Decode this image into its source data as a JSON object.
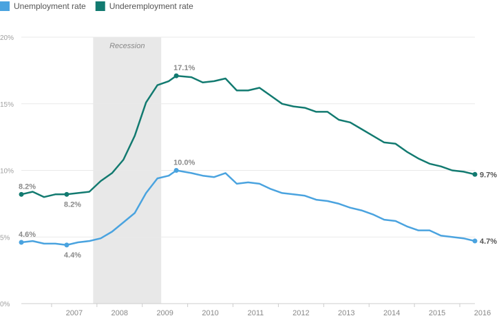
{
  "chart_data": {
    "type": "line",
    "title": "",
    "xlabel": "",
    "ylabel": "",
    "ylim": [
      0,
      20
    ],
    "xlim": [
      "2006-05",
      "2016-05"
    ],
    "y_ticks": [
      "0%",
      "5%",
      "10%",
      "15%",
      "20%"
    ],
    "x_ticks": [
      "2007",
      "2008",
      "2009",
      "2010",
      "2011",
      "2012",
      "2013",
      "2014",
      "2015",
      "2016"
    ],
    "grid": true,
    "legend_position": "top-left",
    "shaded_region": {
      "label": "Recession",
      "start": "2007-12",
      "end": "2009-06"
    },
    "series": [
      {
        "name": "Unemployment rate",
        "color": "#4aa3df",
        "points": [
          [
            "2006-05",
            4.6
          ],
          [
            "2006-08",
            4.7
          ],
          [
            "2006-11",
            4.5
          ],
          [
            "2007-02",
            4.5
          ],
          [
            "2007-05",
            4.4
          ],
          [
            "2007-08",
            4.6
          ],
          [
            "2007-11",
            4.7
          ],
          [
            "2008-02",
            4.9
          ],
          [
            "2008-05",
            5.4
          ],
          [
            "2008-08",
            6.1
          ],
          [
            "2008-11",
            6.8
          ],
          [
            "2009-02",
            8.3
          ],
          [
            "2009-05",
            9.4
          ],
          [
            "2009-08",
            9.6
          ],
          [
            "2009-10",
            10.0
          ],
          [
            "2010-02",
            9.8
          ],
          [
            "2010-05",
            9.6
          ],
          [
            "2010-08",
            9.5
          ],
          [
            "2010-11",
            9.8
          ],
          [
            "2011-02",
            9.0
          ],
          [
            "2011-05",
            9.1
          ],
          [
            "2011-08",
            9.0
          ],
          [
            "2011-11",
            8.6
          ],
          [
            "2012-02",
            8.3
          ],
          [
            "2012-05",
            8.2
          ],
          [
            "2012-08",
            8.1
          ],
          [
            "2012-11",
            7.8
          ],
          [
            "2013-02",
            7.7
          ],
          [
            "2013-05",
            7.5
          ],
          [
            "2013-08",
            7.2
          ],
          [
            "2013-11",
            7.0
          ],
          [
            "2014-02",
            6.7
          ],
          [
            "2014-05",
            6.3
          ],
          [
            "2014-08",
            6.2
          ],
          [
            "2014-11",
            5.8
          ],
          [
            "2015-02",
            5.5
          ],
          [
            "2015-05",
            5.5
          ],
          [
            "2015-08",
            5.1
          ],
          [
            "2015-11",
            5.0
          ],
          [
            "2016-02",
            4.9
          ],
          [
            "2016-05",
            4.7
          ]
        ],
        "annotations": [
          {
            "x": "2006-05",
            "y": 4.6,
            "label": "4.6%"
          },
          {
            "x": "2007-05",
            "y": 4.4,
            "label": "4.4%"
          },
          {
            "x": "2009-10",
            "y": 10.0,
            "label": "10.0%"
          },
          {
            "x": "2016-05",
            "y": 4.7,
            "label": "4.7%"
          }
        ]
      },
      {
        "name": "Underemployment rate",
        "color": "#127a70",
        "points": [
          [
            "2006-05",
            8.2
          ],
          [
            "2006-08",
            8.4
          ],
          [
            "2006-11",
            8.0
          ],
          [
            "2007-02",
            8.2
          ],
          [
            "2007-05",
            8.2
          ],
          [
            "2007-08",
            8.3
          ],
          [
            "2007-11",
            8.4
          ],
          [
            "2008-02",
            9.2
          ],
          [
            "2008-05",
            9.8
          ],
          [
            "2008-08",
            10.8
          ],
          [
            "2008-11",
            12.6
          ],
          [
            "2009-02",
            15.1
          ],
          [
            "2009-05",
            16.4
          ],
          [
            "2009-08",
            16.7
          ],
          [
            "2009-10",
            17.1
          ],
          [
            "2010-02",
            17.0
          ],
          [
            "2010-05",
            16.6
          ],
          [
            "2010-08",
            16.7
          ],
          [
            "2010-11",
            16.9
          ],
          [
            "2011-02",
            16.0
          ],
          [
            "2011-05",
            16.0
          ],
          [
            "2011-08",
            16.2
          ],
          [
            "2011-11",
            15.6
          ],
          [
            "2012-02",
            15.0
          ],
          [
            "2012-05",
            14.8
          ],
          [
            "2012-08",
            14.7
          ],
          [
            "2012-11",
            14.4
          ],
          [
            "2013-02",
            14.4
          ],
          [
            "2013-05",
            13.8
          ],
          [
            "2013-08",
            13.6
          ],
          [
            "2013-11",
            13.1
          ],
          [
            "2014-02",
            12.6
          ],
          [
            "2014-05",
            12.1
          ],
          [
            "2014-08",
            12.0
          ],
          [
            "2014-11",
            11.4
          ],
          [
            "2015-02",
            10.9
          ],
          [
            "2015-05",
            10.5
          ],
          [
            "2015-08",
            10.3
          ],
          [
            "2015-11",
            10.0
          ],
          [
            "2016-02",
            9.9
          ],
          [
            "2016-05",
            9.7
          ]
        ],
        "annotations": [
          {
            "x": "2006-05",
            "y": 8.2,
            "label": "8.2%"
          },
          {
            "x": "2007-05",
            "y": 8.2,
            "label": "8.2%"
          },
          {
            "x": "2009-10",
            "y": 17.1,
            "label": "17.1%"
          },
          {
            "x": "2016-05",
            "y": 9.7,
            "label": "9.7%"
          }
        ]
      }
    ]
  }
}
